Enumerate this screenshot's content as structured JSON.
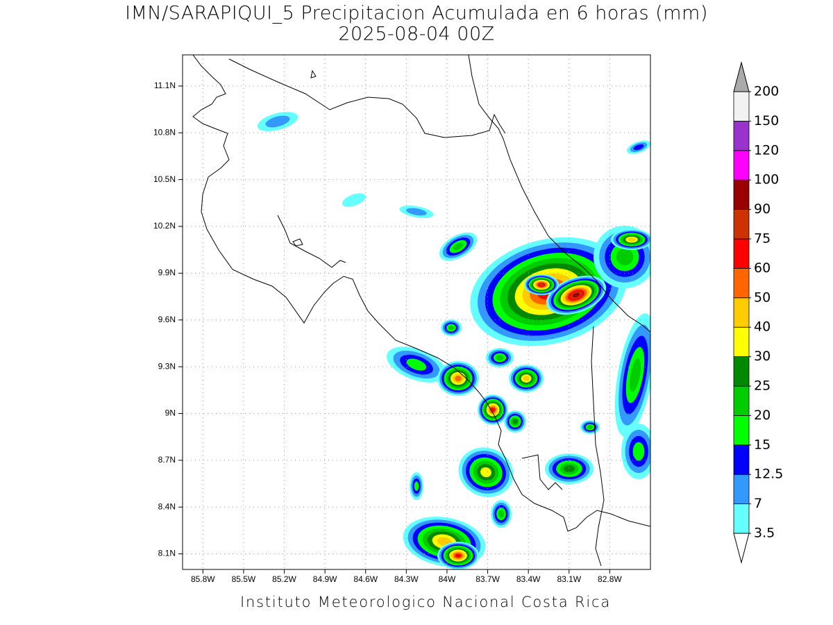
{
  "title": "IMN/SARAPIQUI_5 Precipitacion Acumulada en 6 horas (mm)",
  "subtitle": "2025-08-04 00Z",
  "footer": "Instituto Meteorologico Nacional Costa Rica",
  "map": {
    "xlim": [
      -85.95,
      -82.5
    ],
    "ylim": [
      8.0,
      11.3
    ],
    "grid": true,
    "xticks": [
      {
        "value": -85.8,
        "label": "85.8W"
      },
      {
        "value": -85.5,
        "label": "85.5W"
      },
      {
        "value": -85.2,
        "label": "85.2W"
      },
      {
        "value": -84.9,
        "label": "84.9W"
      },
      {
        "value": -84.6,
        "label": "84.6W"
      },
      {
        "value": -84.3,
        "label": "84.3W"
      },
      {
        "value": -84.0,
        "label": "84W"
      },
      {
        "value": -83.7,
        "label": "83.7W"
      },
      {
        "value": -83.4,
        "label": "83.4W"
      },
      {
        "value": -83.1,
        "label": "83.1W"
      },
      {
        "value": -82.8,
        "label": "82.8W"
      }
    ],
    "yticks": [
      {
        "value": 11.1,
        "label": "11.1N"
      },
      {
        "value": 10.8,
        "label": "10.8N"
      },
      {
        "value": 10.5,
        "label": "10.5N"
      },
      {
        "value": 10.2,
        "label": "10.2N"
      },
      {
        "value": 9.9,
        "label": "9.9N"
      },
      {
        "value": 9.6,
        "label": "9.6N"
      },
      {
        "value": 9.3,
        "label": "9.3N"
      },
      {
        "value": 9.0,
        "label": "9N"
      },
      {
        "value": 8.7,
        "label": "8.7N"
      },
      {
        "value": 8.4,
        "label": "8.4N"
      },
      {
        "value": 8.1,
        "label": "8.1N"
      }
    ]
  },
  "colorbar": {
    "levels": [
      3.5,
      7,
      12.5,
      15,
      20,
      25,
      30,
      40,
      50,
      60,
      75,
      90,
      100,
      120,
      150,
      200
    ],
    "colors": [
      "#66ffff",
      "#3399ff",
      "#0000ff",
      "#00ff00",
      "#00cc00",
      "#008800",
      "#ffff00",
      "#ffcc00",
      "#ff6600",
      "#ff0000",
      "#cc3300",
      "#990000",
      "#ff00ff",
      "#9933cc",
      "#f2f2f2"
    ],
    "under_color": "#ffffff",
    "over_color": "#aaaaaa"
  }
}
